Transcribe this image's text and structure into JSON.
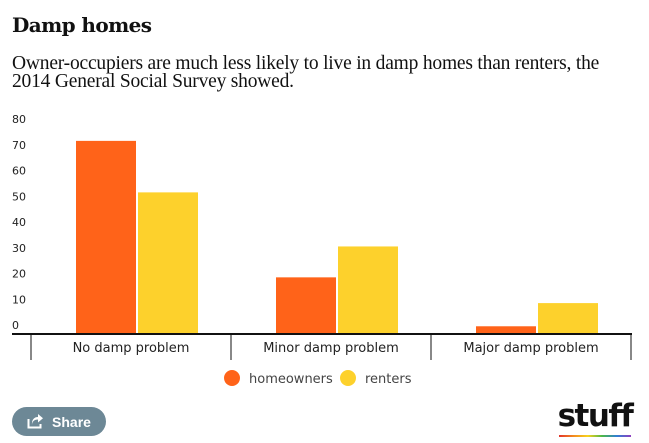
{
  "header": {
    "title": "Damp homes",
    "subtitle": "Owner-occupiers are much less likely to live in damp homes than renters, the 2014 General Social Survey showed."
  },
  "colors": {
    "homeowners": "#ff6319",
    "renters": "#fdd12c",
    "share_button": "#6d8896"
  },
  "chart_data": {
    "type": "bar",
    "title": "Damp homes",
    "subtitle": "Owner-occupiers are much less likely to live in damp homes than renters, the 2014 General Social Survey showed.",
    "xlabel": "",
    "ylabel": "",
    "categories": [
      "No damp problem",
      "Minor damp problem",
      "Major damp problem"
    ],
    "series": [
      {
        "name": "homeowners",
        "color": "#ff6319",
        "values": [
          75,
          22,
          3
        ]
      },
      {
        "name": "renters",
        "color": "#fdd12c",
        "values": [
          55,
          34,
          12
        ]
      }
    ],
    "ylim": [
      0,
      80
    ],
    "yticks": [
      0,
      10,
      20,
      30,
      40,
      50,
      60,
      70,
      80
    ],
    "grid": false,
    "legend": "bottom-center"
  },
  "footer": {
    "share_label": "Share",
    "share_icon": "share-icon",
    "logo_text": "stuff"
  }
}
